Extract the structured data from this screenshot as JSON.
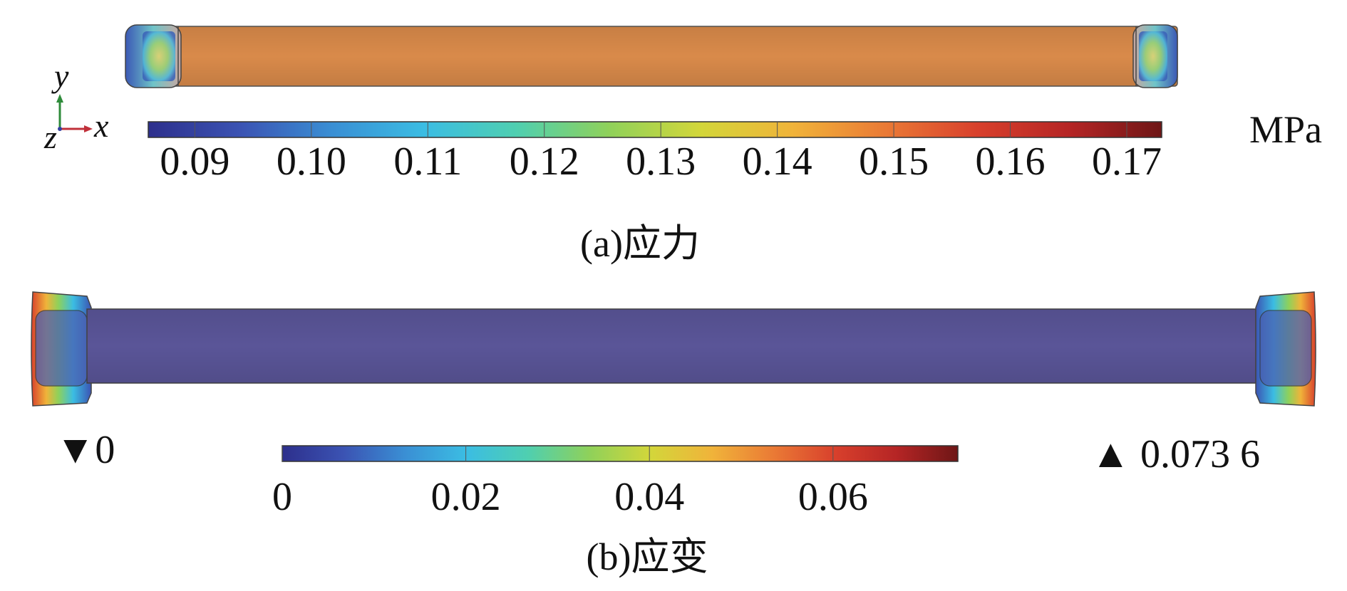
{
  "colormap": [
    "#2d2f8c",
    "#3b53b3",
    "#3a8fd4",
    "#3bbde3",
    "#4fcfb0",
    "#8fd15a",
    "#d3d63a",
    "#f0b33a",
    "#ea7a35",
    "#d8402c",
    "#b52525",
    "#6e1616"
  ],
  "panel_a": {
    "caption": "(a)应力",
    "unit": "MPa",
    "ticks": [
      "0.09",
      "0.10",
      "0.11",
      "0.12",
      "0.13",
      "0.14",
      "0.15",
      "0.16",
      "0.17"
    ],
    "range": [
      0.086,
      0.173
    ],
    "axes": {
      "y": "y",
      "x": "x",
      "z": "z"
    },
    "beam_color": "#d98a4a"
  },
  "panel_b": {
    "caption": "(b)应变",
    "ticks": [
      "0",
      "0.02",
      "0.04",
      "0.06"
    ],
    "min_label": "▼0",
    "max_label": "▲ 0.073 6",
    "range": [
      0,
      0.0736
    ],
    "beam_color": "#5a5598"
  }
}
